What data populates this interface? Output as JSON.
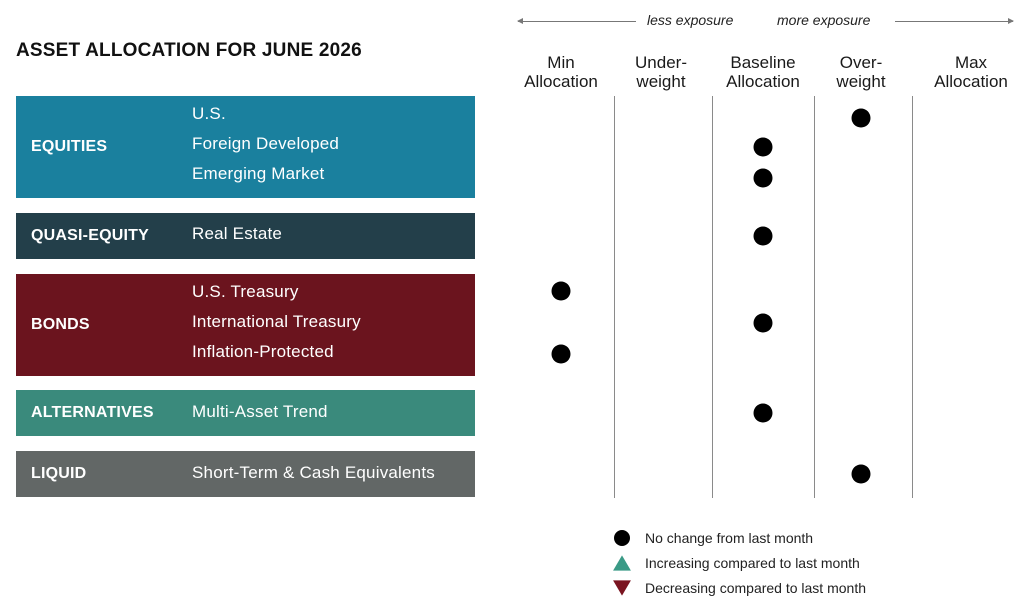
{
  "title": "ASSET ALLOCATION FOR JUNE 2026",
  "exposure": {
    "less": "less exposure",
    "more": "more exposure"
  },
  "colors": {
    "equities": "#1a809e",
    "quasi_equity": "#233f4a",
    "bonds": "#6b141e",
    "alternatives": "#3a8a7c",
    "liquid": "#626766",
    "marker": "#000000",
    "increase": "#3a9a86",
    "decrease": "#7a1420"
  },
  "chart_data": {
    "type": "table",
    "title": "ASSET ALLOCATION FOR JUNE 2026",
    "columns": [
      "Min\nAllocation",
      "Under-\nweight",
      "Baseline\nAllocation",
      "Over-\nweight",
      "Max\nAllocation"
    ],
    "groups": [
      {
        "name": "EQUITIES",
        "color": "equities",
        "items": [
          {
            "label": "U.S.",
            "position": 3,
            "change": "none"
          },
          {
            "label": "Foreign Developed",
            "position": 2,
            "change": "none"
          },
          {
            "label": "Emerging Market",
            "position": 2,
            "change": "none"
          }
        ]
      },
      {
        "name": "QUASI-EQUITY",
        "color": "quasi_equity",
        "items": [
          {
            "label": "Real Estate",
            "position": 2,
            "change": "none"
          }
        ]
      },
      {
        "name": "BONDS",
        "color": "bonds",
        "items": [
          {
            "label": "U.S. Treasury",
            "position": 0,
            "change": "none"
          },
          {
            "label": "International Treasury",
            "position": 2,
            "change": "none"
          },
          {
            "label": "Inflation-Protected",
            "position": 0,
            "change": "none"
          }
        ]
      },
      {
        "name": "ALTERNATIVES",
        "color": "alternatives",
        "items": [
          {
            "label": "Multi-Asset Trend",
            "position": 2,
            "change": "none"
          }
        ]
      },
      {
        "name": "LIQUID",
        "color": "liquid",
        "items": [
          {
            "label": "Short-Term & Cash Equivalents",
            "position": 3,
            "change": "none"
          }
        ]
      }
    ],
    "legend": [
      {
        "symbol": "circle",
        "label": "No change from last month"
      },
      {
        "symbol": "triangle-up",
        "label": "Increasing compared to last month"
      },
      {
        "symbol": "triangle-down",
        "label": "Decreasing compared to last month"
      }
    ]
  }
}
